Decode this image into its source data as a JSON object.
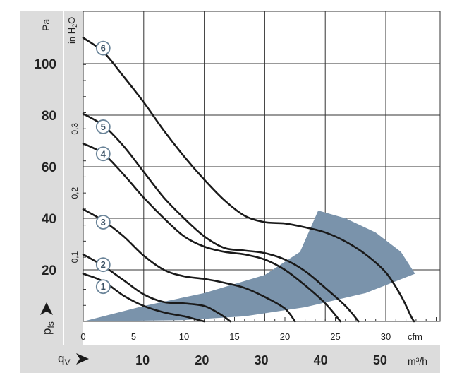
{
  "chart_data": {
    "type": "line",
    "y_unit_pa": "Pa",
    "y_unit_inh2o": "in H",
    "y_unit_inh2o_sub": "2",
    "y_unit_inh2o_tail": "O",
    "y_axis_symbol": "p",
    "y_axis_symbol_sub": "fs",
    "x_axis_symbol": "q",
    "x_axis_symbol_sub": "V",
    "x_unit_cfm": "cfm",
    "x_unit_m3h": "m³/h",
    "colors": {
      "panel": "#dcdcdc",
      "curve": "#1a1a1a",
      "region": "#7a93ab",
      "grid": "#333333",
      "label_ring": "#6a8499"
    },
    "pa_ticks": [
      "100",
      "80",
      "60",
      "40",
      "20"
    ],
    "pa_tick_values": [
      100,
      80,
      60,
      40,
      20
    ],
    "inh2o_ticks": [
      "0,3",
      "0,2",
      "0,1"
    ],
    "inh2o_tick_values": [
      0.3,
      0.2,
      0.1
    ],
    "cfm_ticks": [
      "0",
      "5",
      "10",
      "15",
      "20",
      "25",
      "30"
    ],
    "cfm_tick_values": [
      0,
      5,
      10,
      15,
      20,
      25,
      30
    ],
    "m3h_ticks": [
      "10",
      "20",
      "30",
      "40",
      "50"
    ],
    "m3h_tick_values": [
      10,
      20,
      30,
      40,
      50
    ],
    "xlim_cfm": [
      0,
      35
    ],
    "ylim_pa": [
      0,
      120
    ],
    "grid": true,
    "series": [
      {
        "name": "1",
        "label_at": [
          1,
          13.5
        ],
        "points": [
          [
            0,
            18.5
          ],
          [
            2,
            15.5
          ],
          [
            4,
            10
          ],
          [
            6,
            6
          ],
          [
            8,
            3.5
          ],
          [
            10,
            2
          ],
          [
            11,
            1
          ],
          [
            12,
            0
          ]
        ]
      },
      {
        "name": "2",
        "label_at": [
          1,
          22
        ],
        "points": [
          [
            0,
            26
          ],
          [
            2,
            21.5
          ],
          [
            4,
            16
          ],
          [
            6,
            10.5
          ],
          [
            8,
            7.5
          ],
          [
            10,
            7
          ],
          [
            12,
            6
          ],
          [
            13.5,
            3
          ],
          [
            14.6,
            0
          ]
        ]
      },
      {
        "name": "3",
        "label_at": [
          1,
          38.5
        ],
        "points": [
          [
            0,
            43.5
          ],
          [
            2,
            39
          ],
          [
            4,
            33
          ],
          [
            6,
            25.5
          ],
          [
            8,
            20
          ],
          [
            10,
            17.5
          ],
          [
            12,
            16.5
          ],
          [
            14,
            15
          ],
          [
            16,
            13
          ],
          [
            18,
            9.5
          ],
          [
            20,
            5
          ],
          [
            21,
            0
          ]
        ]
      },
      {
        "name": "4",
        "label_at": [
          1,
          65
        ],
        "points": [
          [
            0,
            69
          ],
          [
            2,
            65
          ],
          [
            4,
            57
          ],
          [
            6,
            48
          ],
          [
            8,
            40
          ],
          [
            10,
            33
          ],
          [
            12,
            29
          ],
          [
            14,
            27
          ],
          [
            16,
            26
          ],
          [
            18,
            24
          ],
          [
            20,
            20
          ],
          [
            22,
            14
          ],
          [
            24,
            7
          ],
          [
            25.5,
            0
          ]
        ]
      },
      {
        "name": "5",
        "label_at": [
          1,
          75.5
        ],
        "points": [
          [
            0,
            80.5
          ],
          [
            2,
            76
          ],
          [
            4,
            68
          ],
          [
            6,
            58
          ],
          [
            8,
            48
          ],
          [
            10,
            40
          ],
          [
            12,
            33
          ],
          [
            14,
            28.5
          ],
          [
            16,
            27.5
          ],
          [
            18,
            26.5
          ],
          [
            20,
            24
          ],
          [
            22,
            19.5
          ],
          [
            24,
            13
          ],
          [
            26,
            6
          ],
          [
            27.3,
            0
          ]
        ]
      },
      {
        "name": "6",
        "label_at": [
          1,
          106
        ],
        "points": [
          [
            0,
            110
          ],
          [
            2,
            104.5
          ],
          [
            4,
            95
          ],
          [
            6,
            85
          ],
          [
            8,
            74
          ],
          [
            10,
            64
          ],
          [
            12,
            55
          ],
          [
            14,
            47
          ],
          [
            16,
            41
          ],
          [
            18,
            38.5
          ],
          [
            20,
            38
          ],
          [
            22,
            36.5
          ],
          [
            24,
            34.5
          ],
          [
            26,
            31
          ],
          [
            28,
            26
          ],
          [
            30,
            19
          ],
          [
            31.5,
            10
          ],
          [
            32.5,
            2
          ],
          [
            32.8,
            0
          ]
        ]
      }
    ],
    "region": [
      [
        0,
        0
      ],
      [
        6,
        6
      ],
      [
        12,
        11
      ],
      [
        18,
        18
      ],
      [
        21.5,
        27
      ],
      [
        23.3,
        43
      ],
      [
        26,
        40
      ],
      [
        29,
        34.5
      ],
      [
        31.5,
        27
      ],
      [
        32.9,
        18.5
      ],
      [
        28,
        11
      ],
      [
        22,
        5.5
      ],
      [
        16,
        2
      ],
      [
        10,
        0.5
      ],
      [
        0,
        0
      ]
    ]
  }
}
